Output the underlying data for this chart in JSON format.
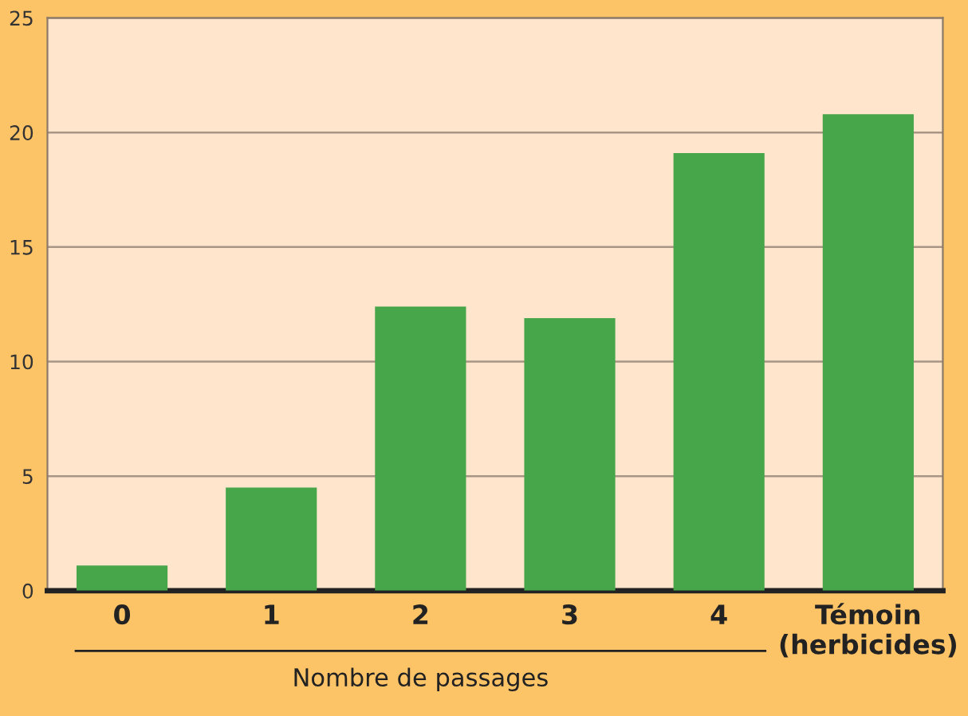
{
  "chart_data": {
    "type": "bar",
    "xlabel": "Nombre de passages",
    "categories": [
      "0",
      "1",
      "2",
      "3",
      "4",
      "Témoin\n(herbicides)"
    ],
    "values": [
      1.1,
      4.5,
      12.4,
      11.9,
      19.1,
      20.8
    ],
    "color": "#46a649",
    "ylim": [
      0,
      25
    ],
    "yticks": [
      0,
      5,
      10,
      15,
      20,
      25
    ],
    "grid": "y"
  }
}
